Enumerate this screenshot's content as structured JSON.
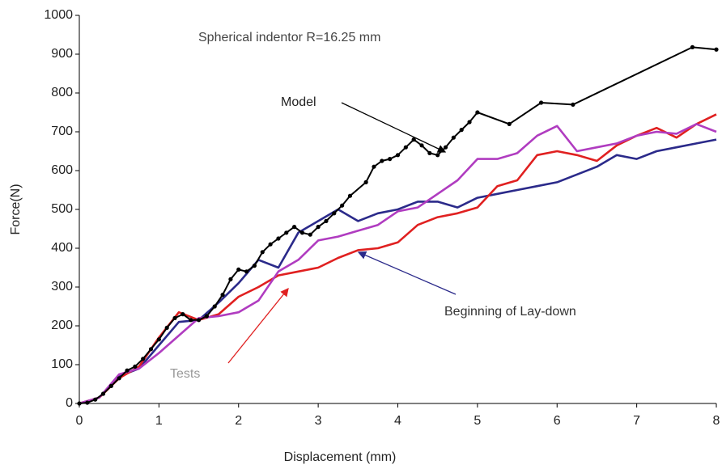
{
  "chart_data": {
    "type": "line",
    "xlabel": "Displacement (mm)",
    "ylabel": "Force(N)",
    "xlim": [
      0,
      8
    ],
    "ylim": [
      0,
      1000
    ],
    "xticks": [
      0,
      1,
      2,
      3,
      4,
      5,
      6,
      7,
      8
    ],
    "yticks": [
      0,
      100,
      200,
      300,
      400,
      500,
      600,
      700,
      800,
      900,
      1000
    ],
    "annotations": [
      "Spherical indentor R=16.25 mm",
      "Model",
      "Beginning of Lay-down",
      "Tests"
    ],
    "series": [
      {
        "color": "#2b2a8a",
        "markers": false,
        "x": [
          0,
          0.25,
          0.5,
          0.75,
          1,
          1.25,
          1.5,
          1.75,
          2,
          2.25,
          2.5,
          2.75,
          3,
          3.25,
          3.5,
          3.75,
          4,
          4.25,
          4.5,
          4.75,
          5,
          5.25,
          5.5,
          5.75,
          6,
          6.25,
          6.5,
          6.75,
          7,
          7.25,
          7.5,
          7.75,
          8
        ],
        "values": [
          0,
          15,
          70,
          90,
          150,
          210,
          215,
          260,
          310,
          370,
          350,
          440,
          470,
          500,
          470,
          490,
          500,
          520,
          520,
          505,
          530,
          540,
          550,
          560,
          570,
          590,
          610,
          640,
          630,
          650,
          660,
          670,
          680
        ]
      },
      {
        "color": "#e02020",
        "markers": false,
        "x": [
          0,
          0.25,
          0.5,
          0.75,
          1,
          1.25,
          1.5,
          1.75,
          2,
          2.25,
          2.5,
          2.75,
          3,
          3.25,
          3.5,
          3.75,
          4,
          4.25,
          4.5,
          4.75,
          5,
          5.25,
          5.5,
          5.75,
          6,
          6.25,
          6.5,
          6.75,
          7,
          7.25,
          7.5,
          7.75,
          8
        ],
        "values": [
          0,
          15,
          65,
          95,
          170,
          235,
          215,
          230,
          275,
          300,
          330,
          340,
          350,
          375,
          395,
          400,
          415,
          460,
          480,
          490,
          505,
          560,
          575,
          640,
          650,
          640,
          625,
          665,
          690,
          710,
          685,
          720,
          745
        ]
      },
      {
        "color": "#b03cc0",
        "markers": false,
        "x": [
          0,
          0.25,
          0.5,
          0.75,
          1,
          1.25,
          1.5,
          1.75,
          2,
          2.25,
          2.5,
          2.75,
          3,
          3.25,
          3.5,
          3.75,
          4,
          4.25,
          4.5,
          4.75,
          5,
          5.25,
          5.5,
          5.75,
          6,
          6.25,
          6.5,
          6.75,
          7,
          7.25,
          7.5,
          7.75,
          8
        ],
        "values": [
          0,
          15,
          75,
          90,
          130,
          175,
          220,
          225,
          235,
          265,
          340,
          370,
          420,
          430,
          445,
          460,
          495,
          505,
          540,
          575,
          630,
          630,
          645,
          690,
          715,
          650,
          660,
          670,
          690,
          700,
          695,
          720,
          700
        ]
      },
      {
        "color": "#000000",
        "markers": true,
        "x": [
          0,
          0.1,
          0.2,
          0.3,
          0.4,
          0.5,
          0.6,
          0.7,
          0.8,
          0.9,
          1.0,
          1.1,
          1.2,
          1.3,
          1.4,
          1.5,
          1.6,
          1.7,
          1.8,
          1.9,
          2.0,
          2.1,
          2.2,
          2.3,
          2.4,
          2.5,
          2.6,
          2.7,
          2.8,
          2.9,
          3.0,
          3.1,
          3.2,
          3.3,
          3.4,
          3.6,
          3.7,
          3.8,
          3.9,
          4.0,
          4.1,
          4.2,
          4.3,
          4.4,
          4.5,
          4.6,
          4.7,
          4.8,
          4.9,
          5.0,
          5.4,
          5.8,
          6.2,
          7.7,
          8.0
        ],
        "values": [
          0,
          2,
          10,
          25,
          45,
          65,
          85,
          95,
          115,
          140,
          165,
          195,
          220,
          230,
          215,
          215,
          225,
          250,
          280,
          320,
          345,
          340,
          355,
          390,
          410,
          425,
          440,
          455,
          440,
          435,
          455,
          470,
          490,
          510,
          535,
          570,
          610,
          625,
          630,
          640,
          660,
          680,
          665,
          645,
          640,
          660,
          685,
          705,
          725,
          750,
          720,
          775,
          770,
          918,
          912
        ]
      }
    ]
  }
}
